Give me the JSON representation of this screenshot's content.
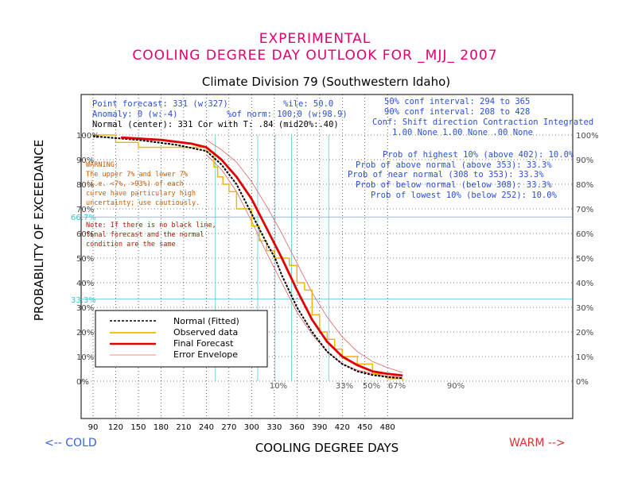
{
  "title": {
    "line1": "EXPERIMENTAL",
    "line2": "COOLING DEGREE DAY OUTLOOK FOR _MJJ_ 2007",
    "subtitle": "Climate Division 79 (Southwestern Idaho)"
  },
  "info_left": [
    "Point forecast: 331 (w:327)",
    "Anomaly: 0 (w:-4)",
    "Normal (center): 331  Cor with T: .84 (mid20%:.40)"
  ],
  "info_mid": [
    "%ile: 50.0",
    "%of norm:  100;0 (w:98.9)"
  ],
  "info_right": [
    "50% conf interval: 294 to 365",
    "90% conf interval: 208 to 428",
    "Conf: Shift direction  Contraction  Integrated",
    "1.00 None     1.00 None  .00 None"
  ],
  "probs": [
    "Prob of highest 10% (above 402): 10.0%",
    "Prob of above normal (above 353): 33.3%",
    "Prob of near normal (308 to 353): 33.3%",
    "Prob of below normal (below 308): 33.3%",
    "Prob of lowest 10% (below 252): 10.0%"
  ],
  "warning": [
    "WARNING:",
    "The upper 7% and lower 7%",
    "(i.e. <7%, >93%) of each",
    "curve have particulary high",
    "uncertainty; use cautiously."
  ],
  "note": [
    "Note: If there is no black line,",
    "final forecast and  the normal",
    "condition are the same"
  ],
  "cyan_labels": [
    "66.7%",
    "33.3%"
  ],
  "pct_markers": [
    "10%",
    "33%",
    "50%",
    "67%",
    "90%"
  ],
  "left_arrow": "<-- COLD",
  "right_arrow": "WARM -->",
  "legend": [
    "Normal (Fitted)",
    "Observed data",
    "Final Forecast",
    "Error Envelope"
  ],
  "colors": {
    "title": "#e0006e",
    "normal": "#000000",
    "observed": "#f0b400",
    "forecast": "#e00000",
    "envelope": "#e06060",
    "guides": "#40c0d0"
  },
  "chart_data": {
    "type": "line",
    "xlabel": "COOLING DEGREE DAYS",
    "ylabel": "PROBABILITY OF EXCEEDANCE",
    "xlim": [
      80,
      510
    ],
    "ylim": [
      0,
      100
    ],
    "x_ticks": [
      90,
      120,
      150,
      180,
      210,
      240,
      270,
      300,
      330,
      360,
      390,
      420,
      450,
      480
    ],
    "y_ticks_left": [
      "0%",
      "10%",
      "20%",
      "30%",
      "40%",
      "50%",
      "60%",
      "70%",
      "80%",
      "90%",
      "100%"
    ],
    "y_ticks_right": [
      "0%",
      "10%",
      "20%",
      "30%",
      "40%",
      "50%",
      "60%",
      "70%",
      "80%",
      "90%",
      "100%"
    ],
    "reference_lines_y": [
      66.7,
      33.3
    ],
    "percentile_markers_x": [
      252,
      308,
      331,
      353,
      402
    ],
    "series": [
      {
        "name": "Normal (Fitted)",
        "style": "dashed",
        "x": [
          90,
          150,
          200,
          240,
          260,
          280,
          300,
          320,
          331,
          340,
          360,
          380,
          400,
          420,
          440,
          460,
          480,
          500
        ],
        "y": [
          99.5,
          98,
          96,
          93.5,
          88,
          80,
          68,
          56,
          50,
          43,
          30,
          20,
          12,
          7,
          4,
          2.5,
          1.7,
          1.2
        ]
      },
      {
        "name": "Observed data",
        "style": "step",
        "x": [
          90,
          120,
          120,
          150,
          150,
          240,
          250,
          255,
          262,
          270,
          280,
          290,
          300,
          310,
          320,
          330,
          340,
          350,
          360,
          370,
          380,
          390,
          400,
          410,
          420,
          440,
          460,
          480,
          500
        ],
        "y": [
          100,
          100,
          97,
          97,
          95,
          93,
          87,
          83,
          80,
          77,
          70,
          70,
          63,
          57,
          53,
          50,
          50,
          47,
          40,
          37,
          27,
          20,
          17,
          13,
          10,
          7,
          3,
          1,
          0
        ]
      },
      {
        "name": "Final Forecast",
        "style": "solid",
        "x": [
          127,
          180,
          220,
          240,
          260,
          280,
          300,
          320,
          340,
          360,
          380,
          400,
          420,
          440,
          460,
          480,
          500
        ],
        "y": [
          99,
          98,
          96.5,
          95,
          90,
          83,
          74,
          62,
          50,
          37,
          25,
          16,
          10,
          6.5,
          4,
          3,
          2.3
        ]
      },
      {
        "name": "Error Envelope (upper)",
        "style": "thin",
        "x": [
          240,
          260,
          280,
          300,
          320,
          340,
          360,
          380,
          400,
          420,
          440,
          460,
          480,
          500
        ],
        "y": [
          98,
          94,
          89,
          81,
          71,
          60,
          48,
          36,
          26,
          18,
          12,
          8,
          5.5,
          3.5
        ]
      },
      {
        "name": "Error Envelope (lower)",
        "style": "thin",
        "x": [
          240,
          260,
          280,
          300,
          320,
          340,
          360,
          380,
          400,
          420,
          440,
          460,
          480,
          500
        ],
        "y": [
          92,
          86,
          77,
          65,
          52,
          40,
          28,
          19,
          12,
          7,
          4.5,
          3,
          2,
          1.5
        ]
      }
    ]
  }
}
